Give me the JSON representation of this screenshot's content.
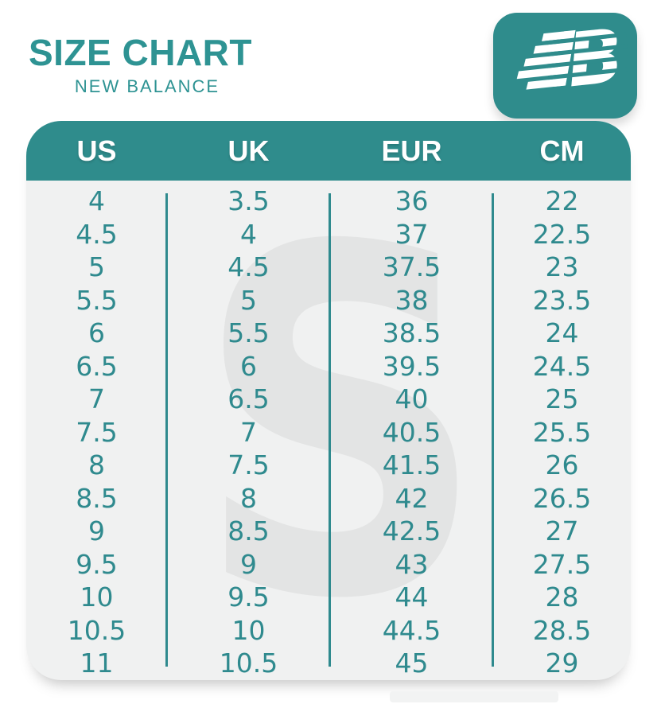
{
  "header": {
    "title": "SIZE CHART",
    "subtitle": "NEW BALANCE",
    "brand": "New Balance",
    "logo_icon": "new-balance-nb-icon"
  },
  "chart_data": {
    "type": "table",
    "title": "SIZE CHART",
    "subtitle": "NEW BALANCE",
    "columns": [
      "US",
      "UK",
      "EUR",
      "CM"
    ],
    "rows": [
      [
        "4",
        "3.5",
        "36",
        "22"
      ],
      [
        "4.5",
        "4",
        "37",
        "22.5"
      ],
      [
        "5",
        "4.5",
        "37.5",
        "23"
      ],
      [
        "5.5",
        "5",
        "38",
        "23.5"
      ],
      [
        "6",
        "5.5",
        "38.5",
        "24"
      ],
      [
        "6.5",
        "6",
        "39.5",
        "24.5"
      ],
      [
        "7",
        "6.5",
        "40",
        "25"
      ],
      [
        "7.5",
        "7",
        "40.5",
        "25.5"
      ],
      [
        "8",
        "7.5",
        "41.5",
        "26"
      ],
      [
        "8.5",
        "8",
        "42",
        "26.5"
      ],
      [
        "9",
        "8.5",
        "42.5",
        "27"
      ],
      [
        "9.5",
        "9",
        "43",
        "27.5"
      ],
      [
        "10",
        "9.5",
        "44",
        "28"
      ],
      [
        "10.5",
        "10",
        "44.5",
        "28.5"
      ],
      [
        "11",
        "10.5",
        "45",
        "29"
      ]
    ]
  },
  "watermark": {
    "letter": "S"
  },
  "colors": {
    "teal": "#2f8c8c",
    "teal-text": "#2f8a8e",
    "title": "#2e9393",
    "card-bg": "#f0f1f1",
    "watermark": "#e3e4e4",
    "header-text": "#ffffff"
  }
}
